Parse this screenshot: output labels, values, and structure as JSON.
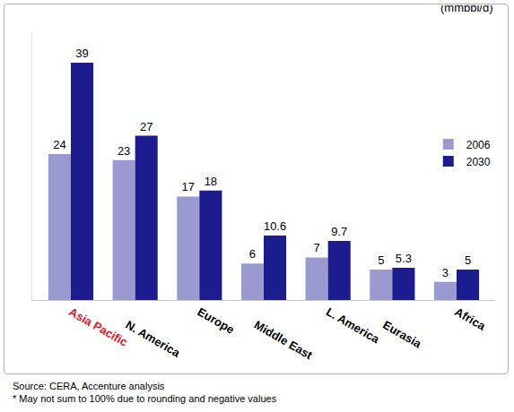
{
  "chart_data": {
    "type": "bar",
    "y_label": "(mmbbl/d)",
    "categories": [
      "Asia Pacific",
      "N. America",
      "Europe",
      "Middle East",
      "L. America",
      "Eurasia",
      "Africa"
    ],
    "series": [
      {
        "name": "2006",
        "color": "#9a9ad0",
        "values": [
          24,
          23,
          17,
          6,
          7,
          5,
          3
        ]
      },
      {
        "name": "2030",
        "color": "#1c1c8e",
        "values": [
          39,
          27,
          18,
          10.6,
          9.7,
          5.3,
          5
        ]
      }
    ],
    "ylim": [
      0,
      44
    ],
    "yticks": [
      0
    ],
    "grid": false,
    "legend": "right",
    "data_labels": true,
    "tick_labels": "x",
    "annotations": [
      "Source: CERA, Accenture analysis",
      "* May not sum to 100% due to rounding and negative values"
    ]
  }
}
